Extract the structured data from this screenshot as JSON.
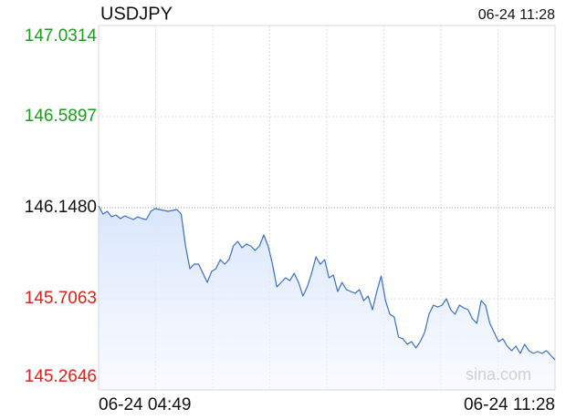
{
  "chart_data": {
    "type": "line",
    "title": "USDJPY",
    "timestamp": "06-24 11:28",
    "watermark": "sina.com",
    "categories": [
      "06-24 04:49",
      null,
      null,
      null,
      null,
      null,
      null,
      null,
      null,
      null,
      null,
      null,
      null,
      null,
      null,
      null,
      null,
      null,
      null,
      null,
      null,
      null,
      null,
      null,
      null,
      null,
      null,
      null,
      null,
      null,
      null,
      null,
      null,
      null,
      null,
      null,
      null,
      null,
      null,
      null,
      null,
      null,
      null,
      null,
      null,
      null,
      null,
      null,
      null,
      null,
      null,
      null,
      null,
      null,
      null,
      null,
      null,
      null,
      null,
      null,
      null,
      null,
      null,
      null,
      null,
      null,
      null,
      null,
      null,
      null,
      null,
      null,
      null,
      null,
      null,
      null,
      null,
      null,
      null,
      null,
      null,
      null,
      null,
      null,
      null,
      null,
      null,
      null,
      null,
      null,
      null,
      null,
      null,
      null,
      null,
      null,
      null,
      null,
      null,
      null,
      null,
      null,
      null,
      null,
      null,
      "06-24 11:28"
    ],
    "series": [
      {
        "name": "USDJPY",
        "color": "#3a6fc0",
        "values": [
          146.1568,
          146.1171,
          146.1303,
          146.1038,
          146.1127,
          146.095,
          146.1082,
          146.0994,
          146.0906,
          146.1038,
          146.095,
          146.0906,
          146.1303,
          146.1436,
          146.1392,
          146.1347,
          146.1303,
          146.1347,
          146.1392,
          146.1171,
          145.9625,
          145.8521,
          145.8741,
          145.8741,
          145.83,
          145.7858,
          145.8388,
          145.8521,
          145.8962,
          145.8741,
          145.8962,
          145.9625,
          145.9846,
          145.9537,
          145.9713,
          145.9625,
          145.9404,
          145.9625,
          146.0155,
          145.9625,
          145.8741,
          145.7637,
          145.7858,
          145.8079,
          145.7946,
          145.83,
          145.7858,
          145.7196,
          145.7637,
          145.83,
          145.9095,
          145.8741,
          145.8962,
          145.8079,
          145.8211,
          145.7416,
          145.7858,
          145.7505,
          145.7416,
          145.7328,
          145.7505,
          145.6975,
          145.7196,
          145.6533,
          145.7416,
          145.8167,
          145.6975,
          145.6312,
          145.618,
          145.5208,
          145.512,
          145.4854,
          145.4987,
          145.4678,
          145.4987,
          145.5429,
          145.6312,
          145.6754,
          145.6665,
          145.6754,
          145.7063,
          145.6533,
          145.6312,
          145.6754,
          145.6621,
          145.6533,
          145.6091,
          145.587,
          145.6975,
          145.6754,
          145.587,
          145.5429,
          145.4987,
          145.512,
          145.4766,
          145.4545,
          145.4766,
          145.4413,
          145.4854,
          145.4545,
          145.4413,
          145.4501,
          145.4413,
          145.4545,
          145.4324,
          145.4104
        ]
      }
    ],
    "ylim": [
      145.2646,
      147.0314
    ],
    "yticks": [
      145.2646,
      145.7063,
      {
        "value": 146.148,
        "label": "146.1480"
      },
      146.5897,
      147.0314
    ],
    "ytick_colors": [
      "#e0201a",
      "#e0201a",
      "#111111",
      "#1a9f1a",
      "#1a9f1a"
    ],
    "grid": true
  }
}
